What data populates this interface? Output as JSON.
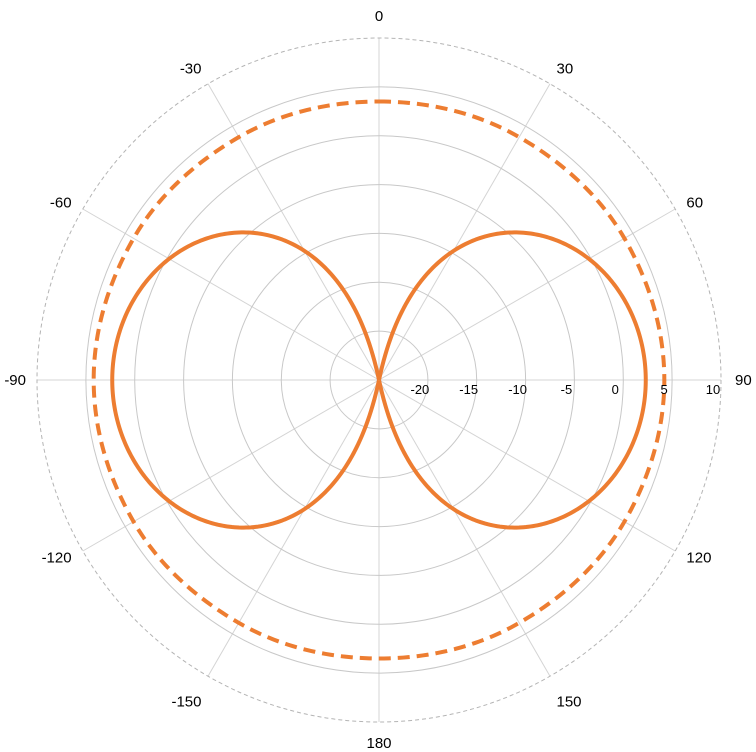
{
  "chart_data": {
    "type": "polar",
    "title": "",
    "angle_unit": "degrees",
    "angle_direction": "clockwise",
    "angle_zero": "top",
    "angle_ticks": [
      0,
      30,
      60,
      90,
      120,
      150,
      180,
      -150,
      -120,
      -90,
      -60,
      -30
    ],
    "angle_tick_labels": [
      "0",
      "30",
      "60",
      "90",
      "120",
      "150",
      "180",
      "-150",
      "-120",
      "-90",
      "-60",
      "-30"
    ],
    "radial_range": [
      -25,
      10
    ],
    "radial_ticks": [
      -20,
      -15,
      -10,
      -5,
      0,
      5,
      10
    ],
    "radial_tick_labels": [
      "-20",
      "-15",
      "-10",
      "-5",
      "0",
      "5",
      "10"
    ],
    "grid": true,
    "legend": "none",
    "series": [
      {
        "style": "solid",
        "color": "#ED7D31",
        "model": "cos_squared_figure_eight",
        "peak_db": 2.3,
        "null_angles": [
          0,
          180
        ],
        "points": [
          [
            0,
            -25
          ],
          [
            5,
            -25
          ],
          [
            10,
            -18.8
          ],
          [
            15,
            -9.6
          ],
          [
            20,
            -5.0
          ],
          [
            25,
            -2.2
          ],
          [
            30,
            -0.4
          ],
          [
            40,
            1.5
          ],
          [
            45,
            1.8
          ],
          [
            50,
            2.0
          ],
          [
            60,
            2.2
          ],
          [
            75,
            2.3
          ],
          [
            90,
            2.3
          ],
          [
            105,
            2.3
          ],
          [
            120,
            2.2
          ],
          [
            130,
            2.0
          ],
          [
            135,
            1.8
          ],
          [
            140,
            1.5
          ],
          [
            150,
            -0.4
          ],
          [
            155,
            -2.2
          ],
          [
            160,
            -5.0
          ],
          [
            165,
            -9.6
          ],
          [
            170,
            -18.8
          ],
          [
            175,
            -25
          ],
          [
            180,
            -25
          ]
        ]
      },
      {
        "style": "dashed",
        "color": "#ED7D31",
        "model": "near_omnidirectional",
        "points": [
          [
            0,
            3.5
          ],
          [
            30,
            3.7
          ],
          [
            60,
            4.0
          ],
          [
            90,
            4.2
          ],
          [
            120,
            4.0
          ],
          [
            150,
            3.7
          ],
          [
            180,
            3.5
          ],
          [
            -150,
            3.7
          ],
          [
            -120,
            4.0
          ],
          [
            -90,
            4.2
          ],
          [
            -60,
            4.0
          ],
          [
            -30,
            3.7
          ]
        ]
      }
    ]
  }
}
